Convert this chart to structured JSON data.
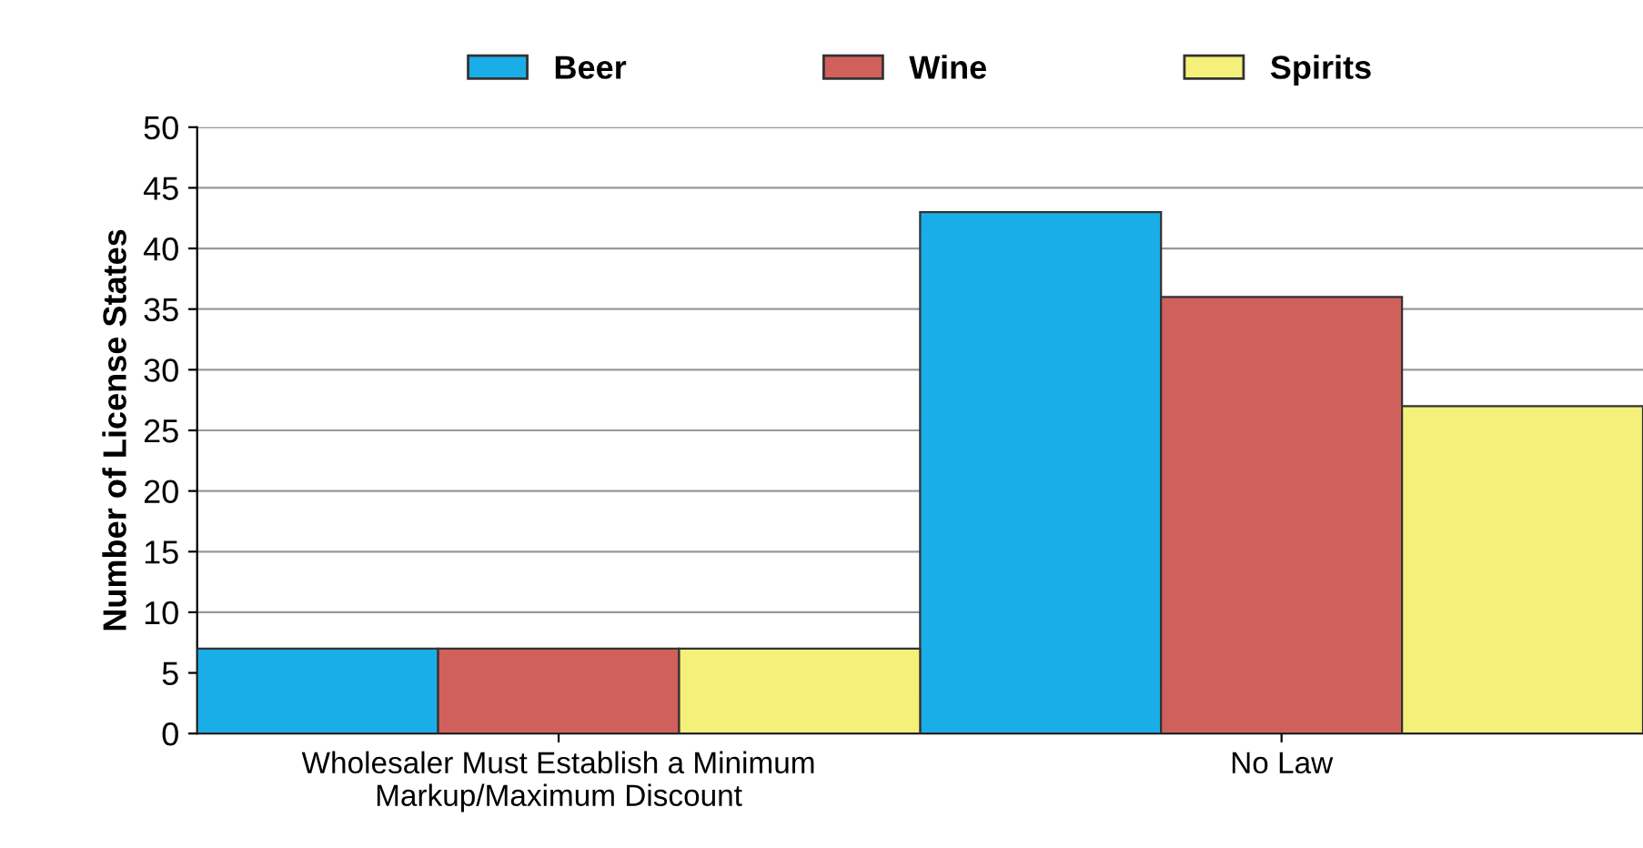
{
  "chart_data": {
    "type": "bar",
    "ylabel": "Number of License States",
    "categories": [
      "Wholesaler Must Establish a Minimum\nMarkup/Maximum Discount",
      "No Law"
    ],
    "series": [
      {
        "name": "Beer",
        "color": "#1aaee8",
        "values": [
          7,
          43
        ]
      },
      {
        "name": "Wine",
        "color": "#d0605c",
        "values": [
          7,
          36
        ]
      },
      {
        "name": "Spirits",
        "color": "#f4f07a",
        "values": [
          7,
          27
        ]
      }
    ],
    "ylim": [
      0,
      50
    ],
    "yticks": [
      0,
      5,
      10,
      15,
      20,
      25,
      30,
      35,
      40,
      45,
      50
    ],
    "grid": "y",
    "legend": "top"
  }
}
